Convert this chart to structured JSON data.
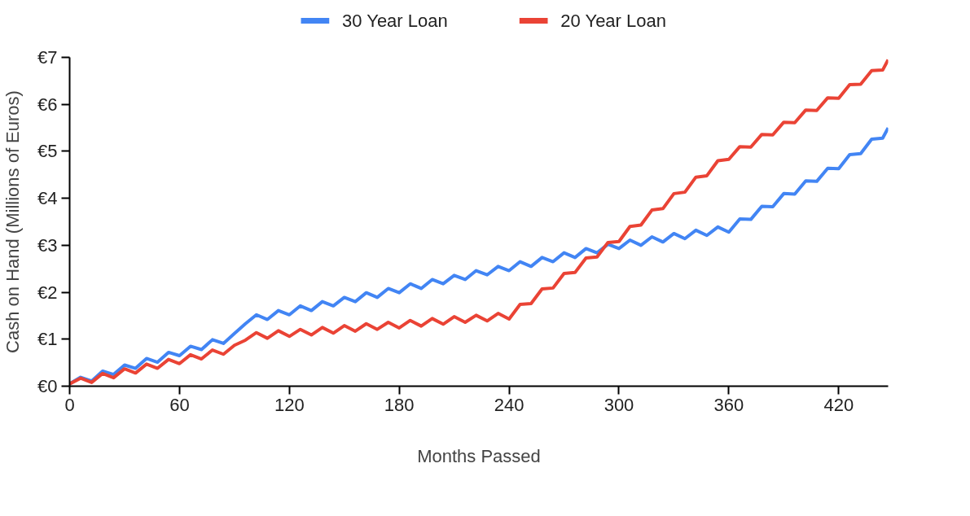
{
  "chart_data": {
    "type": "line",
    "xlabel": "Months Passed",
    "ylabel": "Cash on Hand (Millions of Euros)",
    "x": [
      0,
      6,
      12,
      18,
      24,
      30,
      36,
      42,
      48,
      54,
      60,
      66,
      72,
      78,
      84,
      90,
      96,
      102,
      108,
      114,
      120,
      126,
      132,
      138,
      144,
      150,
      156,
      162,
      168,
      174,
      180,
      186,
      192,
      198,
      204,
      210,
      216,
      222,
      228,
      234,
      240,
      246,
      252,
      258,
      264,
      270,
      276,
      282,
      288,
      294,
      300,
      306,
      312,
      318,
      324,
      330,
      336,
      342,
      348,
      354,
      360,
      366,
      372,
      378,
      384,
      390,
      396,
      402,
      408,
      414,
      420,
      426,
      432,
      438,
      444,
      447
    ],
    "series": [
      {
        "name": "30 Year Loan",
        "color": "#4285f4",
        "values": [
          0.05,
          0.19,
          0.11,
          0.32,
          0.25,
          0.45,
          0.38,
          0.59,
          0.51,
          0.72,
          0.65,
          0.85,
          0.78,
          0.99,
          0.91,
          1.12,
          1.33,
          1.52,
          1.42,
          1.61,
          1.52,
          1.71,
          1.61,
          1.8,
          1.71,
          1.89,
          1.8,
          1.99,
          1.89,
          2.08,
          1.99,
          2.18,
          2.08,
          2.27,
          2.18,
          2.36,
          2.27,
          2.46,
          2.37,
          2.55,
          2.46,
          2.65,
          2.55,
          2.74,
          2.65,
          2.84,
          2.74,
          2.93,
          2.84,
          3.02,
          2.93,
          3.11,
          3.0,
          3.18,
          3.07,
          3.25,
          3.14,
          3.32,
          3.21,
          3.39,
          3.28,
          3.56,
          3.55,
          3.83,
          3.82,
          4.1,
          4.09,
          4.37,
          4.36,
          4.64,
          4.63,
          4.93,
          4.95,
          5.26,
          5.28,
          5.5
        ]
      },
      {
        "name": "20 Year Loan",
        "color": "#ea4335",
        "values": [
          0.05,
          0.17,
          0.08,
          0.27,
          0.18,
          0.37,
          0.28,
          0.47,
          0.38,
          0.57,
          0.48,
          0.67,
          0.58,
          0.77,
          0.68,
          0.87,
          0.98,
          1.14,
          1.02,
          1.18,
          1.06,
          1.21,
          1.09,
          1.25,
          1.13,
          1.29,
          1.17,
          1.33,
          1.21,
          1.36,
          1.24,
          1.4,
          1.28,
          1.44,
          1.32,
          1.48,
          1.36,
          1.51,
          1.39,
          1.55,
          1.43,
          1.74,
          1.76,
          2.07,
          2.09,
          2.4,
          2.42,
          2.73,
          2.75,
          3.06,
          3.08,
          3.4,
          3.43,
          3.75,
          3.78,
          4.1,
          4.13,
          4.45,
          4.48,
          4.8,
          4.83,
          5.1,
          5.09,
          5.36,
          5.35,
          5.62,
          5.61,
          5.88,
          5.87,
          6.14,
          6.13,
          6.42,
          6.43,
          6.72,
          6.73,
          6.95
        ]
      }
    ],
    "xlim": [
      0,
      447
    ],
    "xticks": [
      0,
      60,
      120,
      180,
      240,
      300,
      360,
      420
    ],
    "ylim": [
      0,
      7
    ],
    "yticks": [
      {
        "value": 0,
        "label": "€0"
      },
      {
        "value": 1,
        "label": "€1"
      },
      {
        "value": 2,
        "label": "€2"
      },
      {
        "value": 3,
        "label": "€3"
      },
      {
        "value": 4,
        "label": "€4"
      },
      {
        "value": 5,
        "label": "€5"
      },
      {
        "value": 6,
        "label": "€6"
      },
      {
        "value": 7,
        "label": "€7"
      }
    ],
    "legend": "top",
    "grid": false,
    "line_style": "solid",
    "marker": "none"
  }
}
